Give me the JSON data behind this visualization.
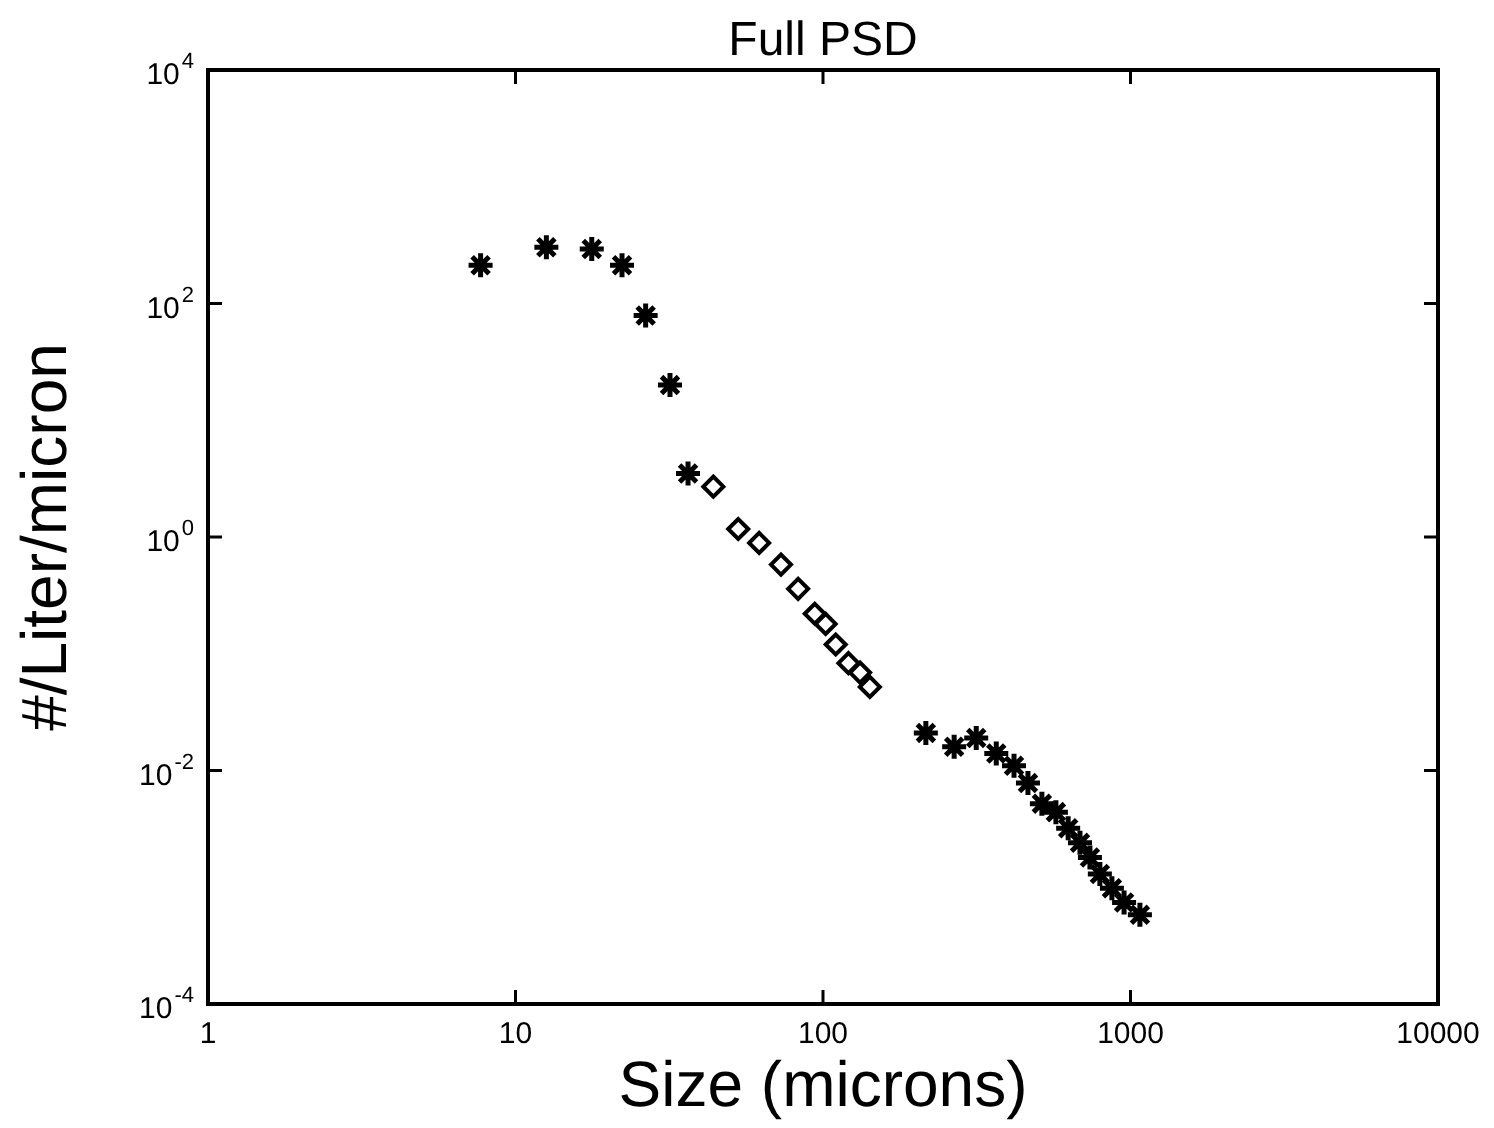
{
  "chart_data": {
    "type": "scatter",
    "title": "Full PSD",
    "xlabel": "Size (microns)",
    "ylabel": "#/Liter/micron",
    "log": "xy",
    "grid": false,
    "xlim": [
      1,
      10000
    ],
    "xticks": [
      1,
      10,
      100,
      1000,
      10000
    ],
    "ylim": [
      0.0001,
      10000
    ],
    "yticks": [
      {
        "value": 0.0001,
        "label": "10$^{-4}$"
      },
      {
        "value": 0.01,
        "label": "10$^{-2}$"
      },
      {
        "value": 1,
        "label": "10$^{0}$"
      },
      {
        "value": 100,
        "label": "10$^{2}$"
      },
      {
        "value": 10000,
        "label": "10$^{4}$"
      }
    ],
    "series": [
      {
        "color": "#000000",
        "marker": "cross",
        "x": [
          7.7,
          12.6,
          17.7,
          22.2,
          26.5,
          31.8,
          36.4
        ],
        "values": [
          213,
          303,
          293,
          213,
          79,
          20,
          3.5
        ]
      },
      {
        "color": "#000000",
        "marker": "diamond",
        "x": [
          44,
          53,
          62,
          73,
          83,
          94,
          102,
          110,
          121,
          132,
          142
        ],
        "values": [
          2.7,
          1.17,
          0.89,
          0.58,
          0.36,
          0.22,
          0.18,
          0.12,
          0.083,
          0.069,
          0.052
        ]
      },
      {
        "color": "#000000",
        "marker": "cross",
        "x": [
          216,
          267,
          315,
          366,
          418,
          464,
          515,
          572,
          627,
          685,
          738,
          795,
          870,
          953,
          1073
        ],
        "values": [
          0.021,
          0.016,
          0.019,
          0.014,
          0.011,
          0.0078,
          0.0052,
          0.0044,
          0.0032,
          0.0024,
          0.0018,
          0.0013,
          0.00098,
          0.00074,
          0.00058
        ]
      }
    ]
  }
}
